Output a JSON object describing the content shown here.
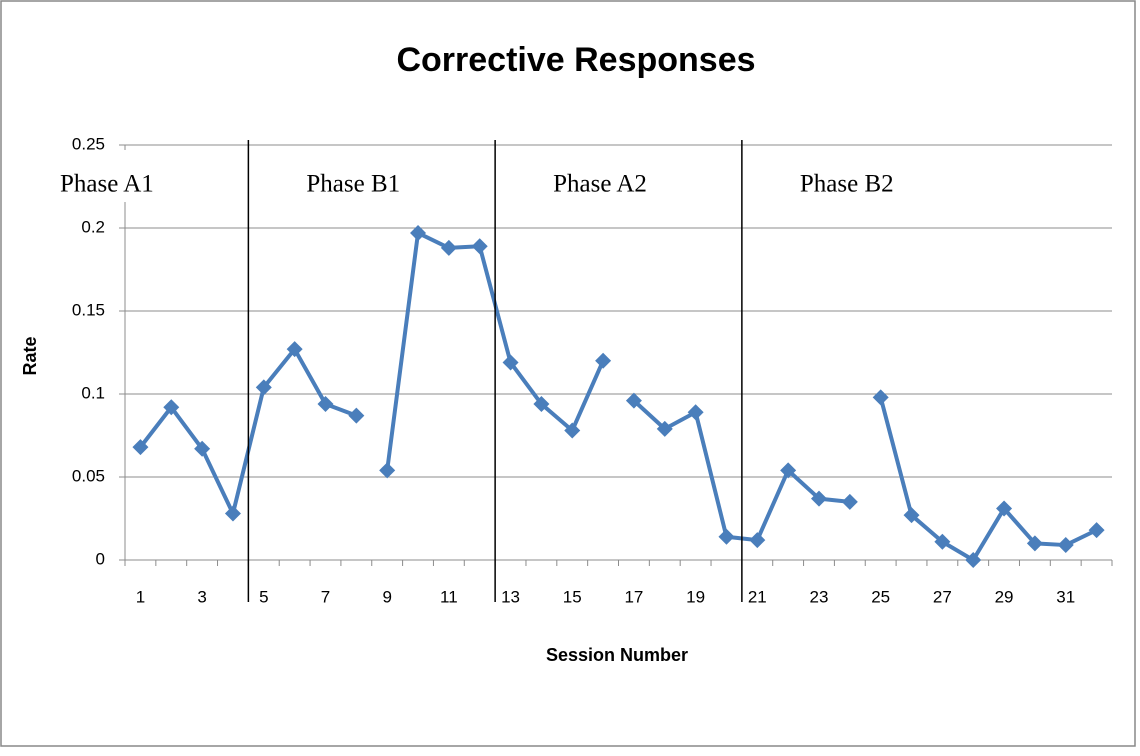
{
  "chart_data": {
    "type": "line",
    "title": "Corrective Responses",
    "x_label": "Session Number",
    "y_label": "Rate",
    "categories": [
      "1",
      null,
      "3",
      null,
      "5",
      null,
      "7",
      null,
      "9",
      null,
      "11",
      null,
      "13",
      null,
      "15",
      null,
      "17",
      null,
      "19",
      null,
      "21",
      null,
      "23",
      null,
      "25",
      null,
      "27",
      null,
      "29",
      null,
      "31",
      null
    ],
    "series": [
      {
        "color": "#4a7ebb",
        "values": [
          0.068,
          0.092,
          0.067,
          0.028,
          0.104,
          0.127,
          0.094,
          0.087,
          null,
          null,
          null,
          null,
          null,
          null,
          null,
          null,
          null,
          null,
          null,
          null,
          null,
          null,
          null,
          null,
          null,
          null,
          null,
          null,
          null,
          null,
          null,
          null
        ]
      },
      {
        "color": "#4a7ebb",
        "values": [
          null,
          null,
          null,
          null,
          null,
          null,
          null,
          null,
          0.054,
          0.197,
          0.188,
          0.189,
          0.119,
          0.094,
          0.078,
          0.12,
          null,
          null,
          null,
          null,
          null,
          null,
          null,
          null,
          null,
          null,
          null,
          null,
          null,
          null,
          null,
          null
        ]
      },
      {
        "color": "#4a7ebb",
        "values": [
          null,
          null,
          null,
          null,
          null,
          null,
          null,
          null,
          null,
          null,
          null,
          null,
          null,
          null,
          null,
          null,
          0.096,
          0.079,
          0.089,
          0.014,
          0.012,
          0.054,
          0.037,
          0.035,
          null,
          null,
          null,
          null,
          null,
          null,
          null,
          null
        ]
      },
      {
        "color": "#4a7ebb",
        "values": [
          null,
          null,
          null,
          null,
          null,
          null,
          null,
          null,
          null,
          null,
          null,
          null,
          null,
          null,
          null,
          null,
          null,
          null,
          null,
          null,
          null,
          null,
          null,
          null,
          0.098,
          0.027,
          0.011,
          0,
          0.031,
          0.01,
          0.009,
          0.018
        ]
      }
    ],
    "phases": [
      {
        "label": "Phase A1",
        "start": 1
      },
      {
        "label": "Phase B1",
        "start": 5
      },
      {
        "label": "Phase A2",
        "start": 13
      },
      {
        "label": "Phase B2",
        "start": 21
      }
    ],
    "ylim": [
      0,
      0.25
    ],
    "yticks": [
      0,
      0.05,
      0.1,
      0.15,
      0.2,
      0.25
    ],
    "grid": true
  }
}
